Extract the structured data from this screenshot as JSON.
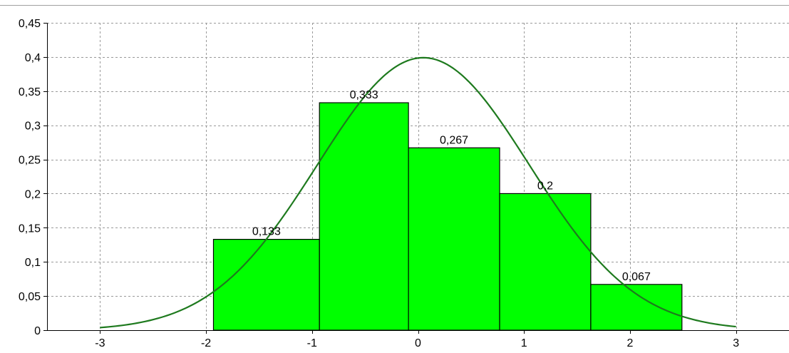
{
  "chart_data": {
    "type": "bar",
    "title": "",
    "xlabel": "",
    "ylabel": "",
    "xlim": [
      -3.5,
      3.5
    ],
    "ylim": [
      0,
      0.45
    ],
    "grid": true,
    "x_ticks": [
      -3,
      -2,
      -1,
      0,
      1,
      2,
      3
    ],
    "x_tick_labels": [
      "-3",
      "-2",
      "-1",
      "0",
      "1",
      "2",
      "3"
    ],
    "y_ticks": [
      0,
      0.05,
      0.1,
      0.15,
      0.2,
      0.25,
      0.3,
      0.35,
      0.4,
      0.45
    ],
    "y_tick_labels": [
      "0",
      "0,05",
      "0,1",
      "0,15",
      "0,2",
      "0,25",
      "0,3",
      "0,35",
      "0,4",
      "0,45"
    ],
    "series": [
      {
        "type": "histogram",
        "color": "#00ff00",
        "bins": [
          {
            "x0": -1.93,
            "x1": -0.93,
            "value": 0.133,
            "label": "0,133"
          },
          {
            "x0": -0.93,
            "x1": -0.09,
            "value": 0.333,
            "label": "0,333"
          },
          {
            "x0": -0.09,
            "x1": 0.77,
            "value": 0.267,
            "label": "0,267"
          },
          {
            "x0": 0.77,
            "x1": 1.63,
            "value": 0.2,
            "label": "0,2"
          },
          {
            "x0": 1.63,
            "x1": 2.49,
            "value": 0.067,
            "label": "0,067"
          }
        ]
      },
      {
        "type": "line",
        "color": "#1e7a1e",
        "function": "normal_pdf",
        "mean": 0.05,
        "sd": 1.0,
        "x_range": [
          -3,
          3
        ]
      }
    ]
  }
}
